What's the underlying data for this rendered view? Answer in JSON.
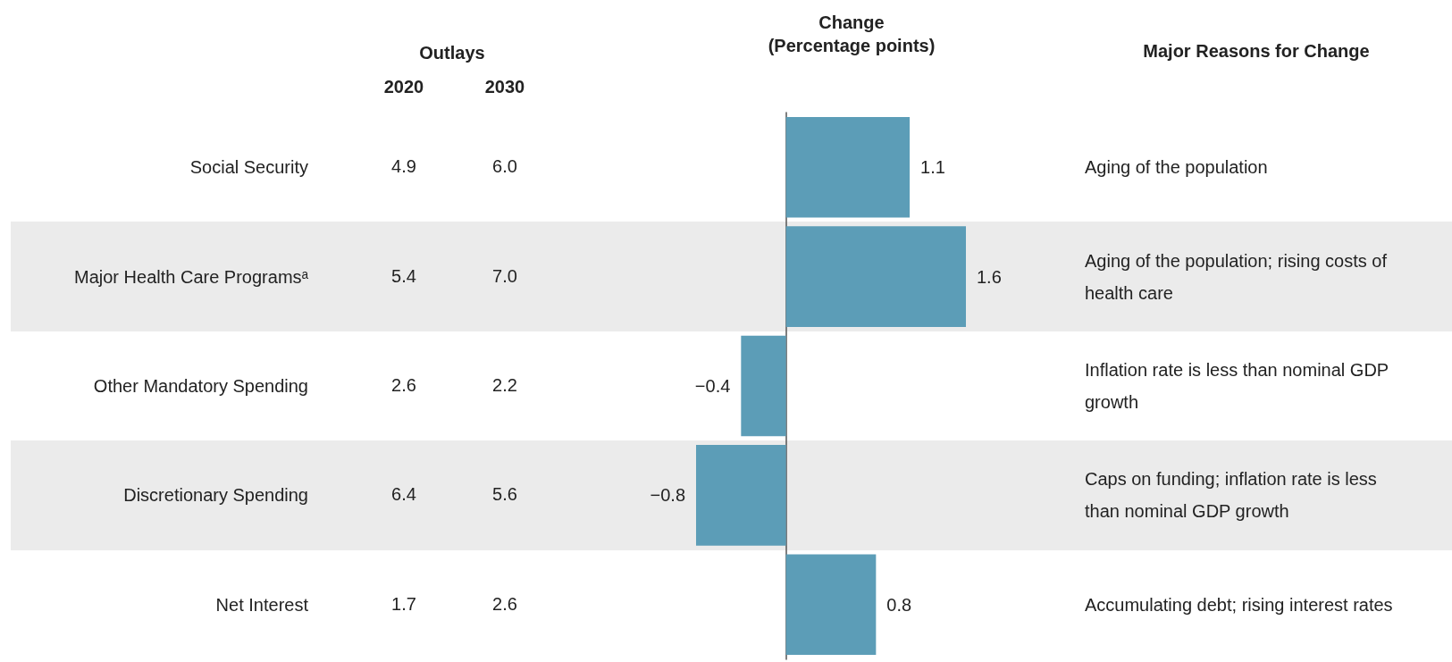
{
  "chart_data": {
    "type": "bar",
    "orientation": "horizontal",
    "xlabel": "Change\n(Percentage points)",
    "categories": [
      "Social Security",
      "Major Health Care Programsᵃ",
      "Other Mandatory Spending",
      "Discretionary Spending",
      "Net Interest"
    ],
    "values": [
      1.1,
      1.6,
      -0.4,
      -0.8,
      0.8
    ],
    "color": "#5c9db7",
    "data_labels": true,
    "grid": false,
    "annotations": [
      "Outlays",
      "2020",
      "2030",
      "Major Reasons for Change",
      "4.9",
      "6.0",
      "Aging of the population",
      "5.4",
      "7.0",
      "Aging of the population; rising costs of health care",
      "2.6",
      "2.2",
      "Inflation rate is less than nominal GDP growth",
      "6.4",
      "5.6",
      "Caps on funding; inflation rate is less than nominal GDP growth",
      "1.7",
      "2.6",
      "Accumulating debt; rising interest rates"
    ]
  }
}
